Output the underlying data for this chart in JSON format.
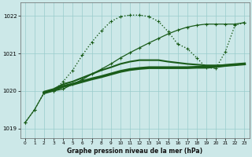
{
  "title": "Graphe pression niveau de la mer (hPa)",
  "bg_color": "#cce8e8",
  "grid_color": "#99cccc",
  "line_color": "#1a5c1a",
  "line_color2": "#2d7a2d",
  "xlim": [
    -0.5,
    23.5
  ],
  "ylim": [
    1018.75,
    1022.35
  ],
  "yticks": [
    1019,
    1020,
    1021,
    1022
  ],
  "xticks": [
    0,
    1,
    2,
    3,
    4,
    5,
    6,
    7,
    8,
    9,
    10,
    11,
    12,
    13,
    14,
    15,
    16,
    17,
    18,
    19,
    20,
    21,
    22,
    23
  ],
  "series_dotted": {
    "x": [
      0,
      1,
      2,
      3,
      4,
      5,
      6,
      7,
      8,
      9,
      10,
      11,
      12,
      13,
      14,
      15,
      16,
      17,
      18,
      19,
      20,
      21,
      22,
      23
    ],
    "y": [
      1019.15,
      1019.5,
      1019.95,
      1020.0,
      1020.25,
      1020.55,
      1020.95,
      1021.3,
      1021.6,
      1021.85,
      1021.98,
      1022.02,
      1022.02,
      1021.98,
      1021.85,
      1021.58,
      1021.25,
      1021.13,
      1020.88,
      1020.62,
      1020.6,
      1021.05,
      1021.75,
      1021.82
    ],
    "linestyle": ":",
    "linewidth": 1.0,
    "marker": "+"
  },
  "series_diagonal": {
    "x": [
      0,
      1,
      2,
      3,
      4,
      5,
      6,
      7,
      8,
      9,
      10,
      11,
      12,
      13,
      14,
      15,
      16,
      17,
      18,
      19,
      20,
      21,
      22,
      23
    ],
    "y": [
      1019.15,
      1019.5,
      1019.95,
      1020.0,
      1020.05,
      1020.18,
      1020.3,
      1020.45,
      1020.58,
      1020.72,
      1020.88,
      1021.02,
      1021.15,
      1021.28,
      1021.4,
      1021.52,
      1021.62,
      1021.7,
      1021.75,
      1021.78,
      1021.78,
      1021.78,
      1021.78,
      1021.82
    ],
    "linestyle": "-",
    "linewidth": 0.9,
    "marker": "+"
  },
  "series_thick1": {
    "x": [
      2,
      3,
      4,
      5,
      6,
      7,
      8,
      9,
      10,
      11,
      12,
      13,
      14,
      15,
      16,
      17,
      18,
      19,
      20,
      21,
      22,
      23
    ],
    "y": [
      1019.95,
      1020.02,
      1020.12,
      1020.18,
      1020.25,
      1020.32,
      1020.38,
      1020.45,
      1020.52,
      1020.57,
      1020.6,
      1020.62,
      1020.62,
      1020.62,
      1020.62,
      1020.62,
      1020.63,
      1020.63,
      1020.65,
      1020.68,
      1020.7,
      1020.72
    ],
    "linestyle": "-",
    "linewidth": 2.5
  },
  "series_thick2": {
    "x": [
      2,
      3,
      4,
      5,
      6,
      7,
      8,
      9,
      10,
      11,
      12,
      13,
      14,
      15,
      16,
      17,
      18,
      19,
      20,
      21,
      22,
      23
    ],
    "y": [
      1019.98,
      1020.05,
      1020.18,
      1020.25,
      1020.35,
      1020.45,
      1020.55,
      1020.63,
      1020.72,
      1020.78,
      1020.82,
      1020.82,
      1020.82,
      1020.78,
      1020.75,
      1020.72,
      1020.7,
      1020.68,
      1020.68,
      1020.68,
      1020.7,
      1020.72
    ],
    "linestyle": "-",
    "linewidth": 1.5
  }
}
